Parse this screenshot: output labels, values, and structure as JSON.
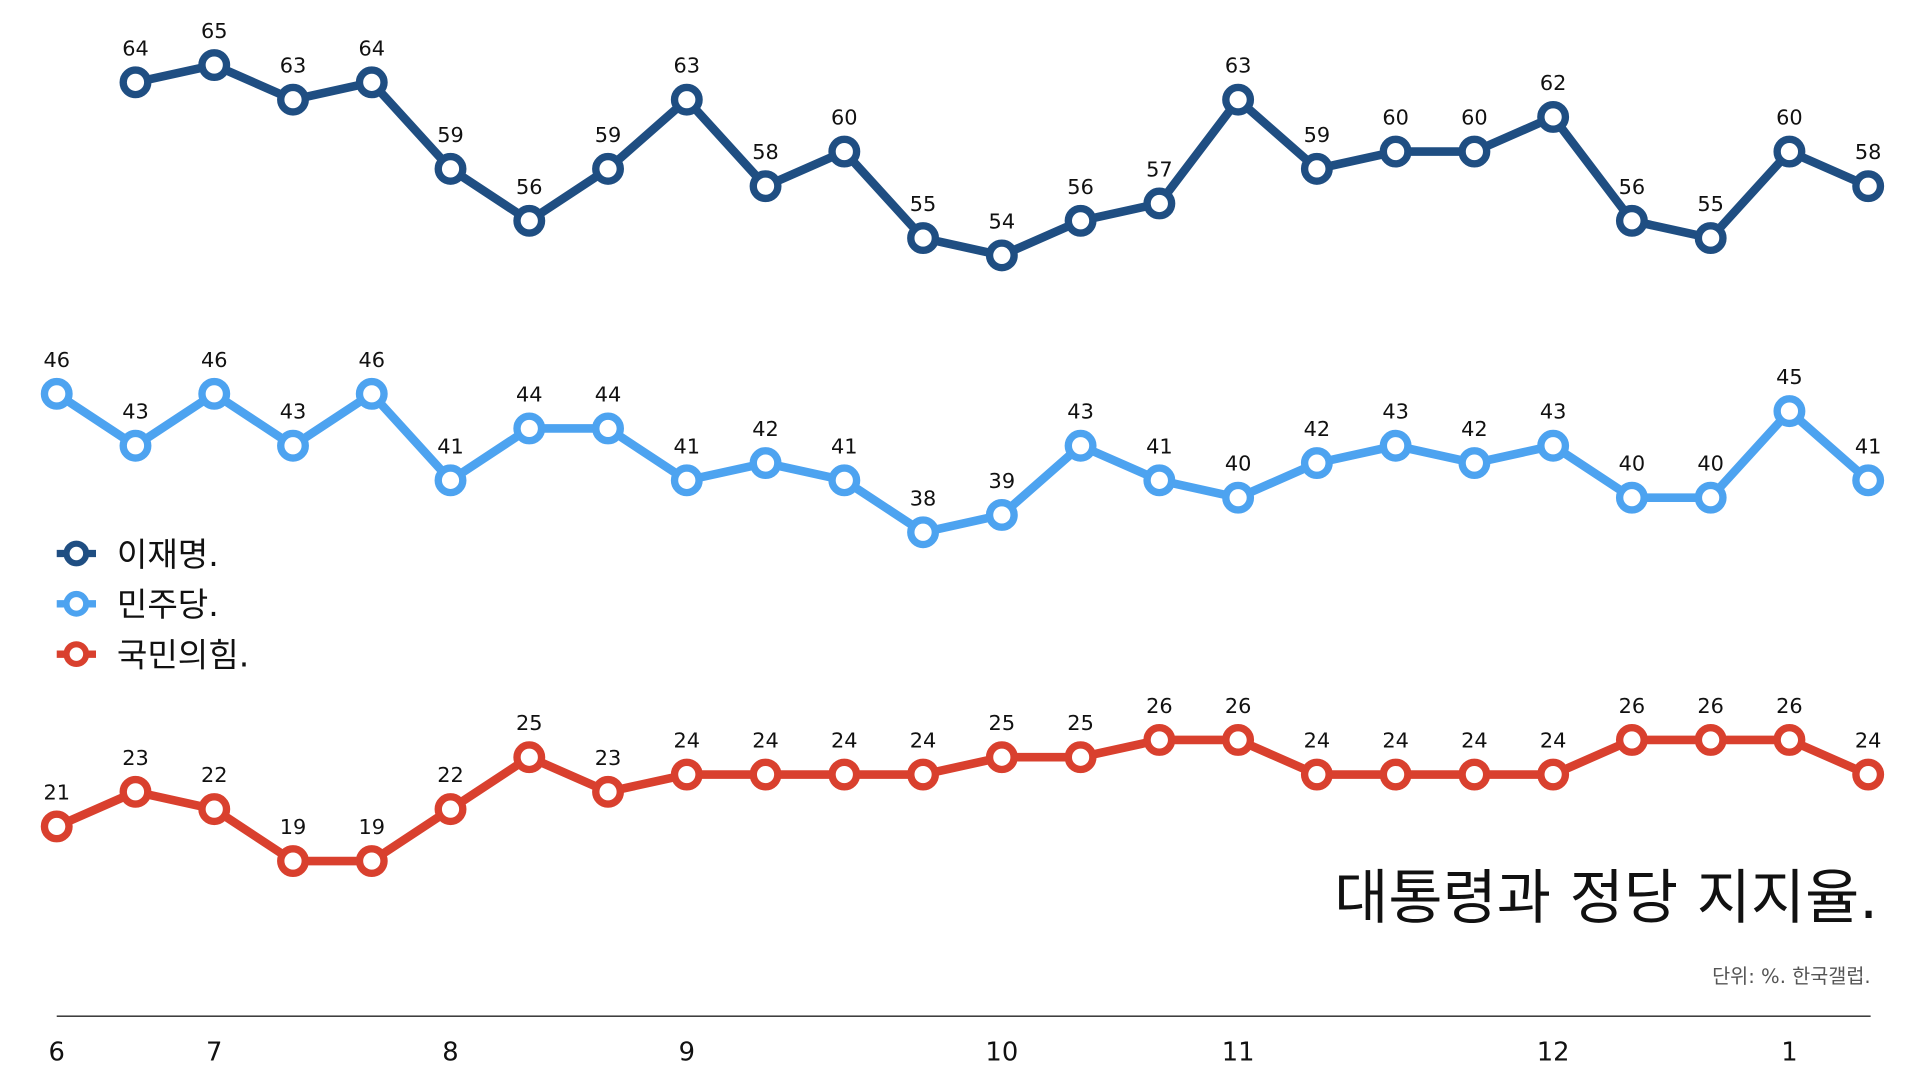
{
  "chart_data": {
    "type": "line",
    "title": "대통령과 정당 지지율.",
    "subtitle": "단위: %. 한국갤럽.",
    "categories": [
      "6",
      null,
      "7",
      null,
      null,
      "8",
      null,
      null,
      "9",
      null,
      null,
      null,
      "10",
      null,
      null,
      "11",
      null,
      null,
      null,
      "12",
      null,
      null,
      "1",
      null
    ],
    "series": [
      {
        "name": "이재명.",
        "color": "#1f4e82",
        "values": [
          null,
          64,
          65,
          63,
          64,
          59,
          56,
          59,
          63,
          58,
          60,
          55,
          54,
          56,
          57,
          63,
          59,
          60,
          60,
          62,
          56,
          55,
          60,
          58
        ]
      },
      {
        "name": "민주당.",
        "color": "#4da3f0",
        "values": [
          46,
          43,
          46,
          43,
          46,
          41,
          44,
          44,
          41,
          42,
          41,
          38,
          39,
          43,
          41,
          40,
          42,
          43,
          42,
          43,
          40,
          40,
          45,
          41
        ]
      },
      {
        "name": "국민의힘.",
        "color": "#d9402e",
        "values": [
          21,
          23,
          22,
          19,
          19,
          22,
          25,
          23,
          24,
          24,
          24,
          24,
          25,
          25,
          26,
          26,
          24,
          24,
          24,
          24,
          26,
          26,
          26,
          24
        ]
      }
    ],
    "ylim": [
      10,
      70
    ],
    "grid": false
  }
}
